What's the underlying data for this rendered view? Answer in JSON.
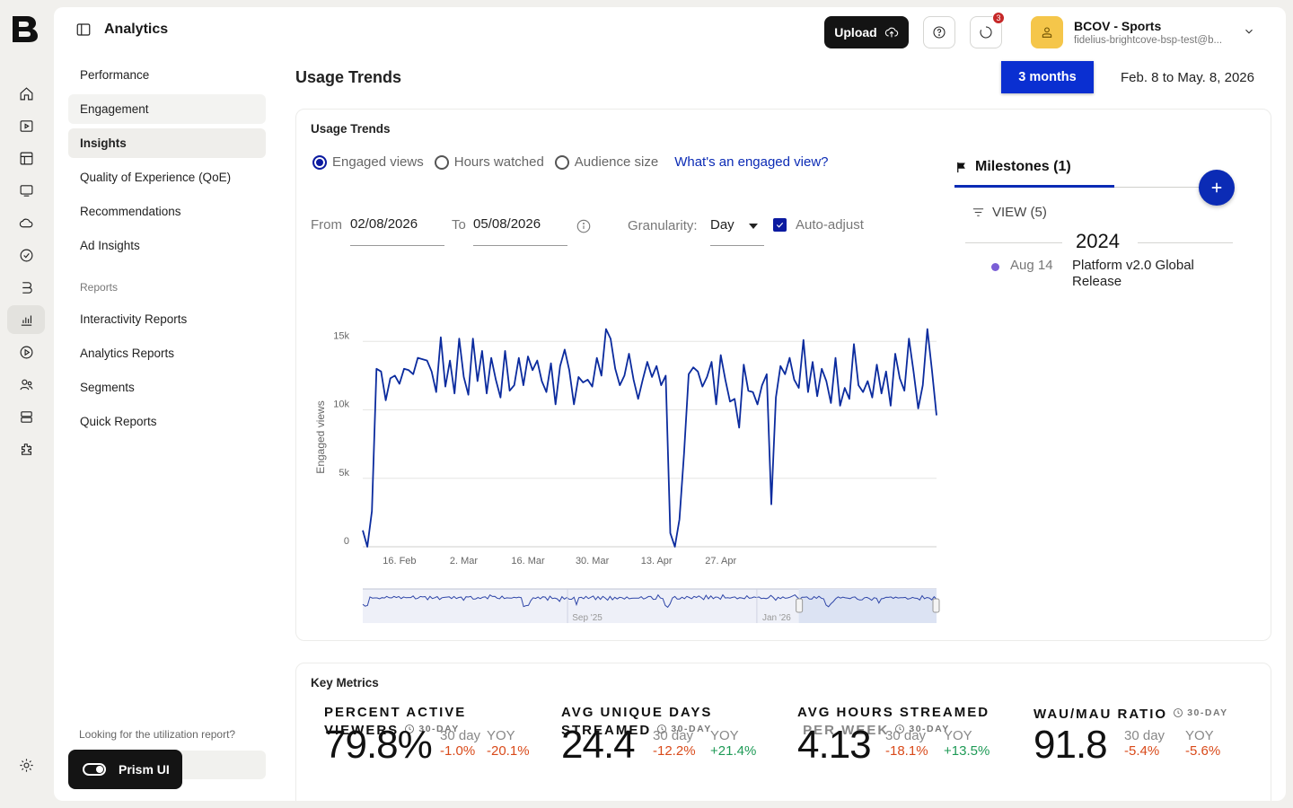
{
  "app": {
    "section_title": "Analytics"
  },
  "sidebar_nav": {
    "items": [
      {
        "label": "Performance"
      },
      {
        "label": "Engagement"
      },
      {
        "label": "Insights"
      },
      {
        "label": "Quality of Experience (QoE)"
      },
      {
        "label": "Recommendations"
      },
      {
        "label": "Ad Insights"
      }
    ],
    "reports_heading": "Reports",
    "reports": [
      {
        "label": "Interactivity Reports"
      },
      {
        "label": "Analytics Reports"
      },
      {
        "label": "Segments"
      },
      {
        "label": "Quick Reports"
      }
    ],
    "util_note": "Looking for the utilization report?",
    "prism_label": "Prism UI"
  },
  "header": {
    "upload_label": "Upload",
    "notification_count": "3",
    "account_name": "BCOV - Sports",
    "account_email": "fidelius-brightcove-bsp-test@b..."
  },
  "page": {
    "title": "Usage Trends",
    "range_button": "3 months",
    "range_text": "Feb. 8 to May. 8, 2026"
  },
  "usage_card": {
    "title": "Usage Trends",
    "metric_options": [
      {
        "label": "Engaged views",
        "selected": true
      },
      {
        "label": "Hours watched",
        "selected": false
      },
      {
        "label": "Audience size",
        "selected": false
      }
    ],
    "help_link": "What's an engaged view?",
    "from_label": "From",
    "from_value": "02/08/2026",
    "to_label": "To",
    "to_value": "05/08/2026",
    "granularity_label": "Granularity:",
    "granularity_value": "Day",
    "auto_adjust_label": "Auto-adjust",
    "auto_adjust_checked": true
  },
  "milestones": {
    "tab_label": "Milestones (1)",
    "view_label": "VIEW (5)",
    "year": "2024",
    "events": [
      {
        "date": "Aug 14",
        "text": "Platform v2.0 Global Release"
      }
    ]
  },
  "chart_data": {
    "type": "line",
    "ylabel": "Engaged views",
    "y_ticks": [
      {
        "v": 0,
        "label": "0"
      },
      {
        "v": 5000,
        "label": "5k"
      },
      {
        "v": 10000,
        "label": "10k"
      },
      {
        "v": 15000,
        "label": "15k"
      }
    ],
    "ylim": [
      0,
      16000
    ],
    "x_ticks": [
      {
        "label": "16. Feb",
        "day": 8
      },
      {
        "label": "2. Mar",
        "day": 22
      },
      {
        "label": "16. Mar",
        "day": 36
      },
      {
        "label": "30. Mar",
        "day": 50
      },
      {
        "label": "13. Apr",
        "day": 64
      },
      {
        "label": "27. Apr",
        "day": 78
      }
    ],
    "grid": true,
    "series": [
      {
        "color": "#0b2b9e",
        "values": [
          1200,
          0,
          2600,
          13000,
          12800,
          10700,
          12300,
          12500,
          11900,
          13000,
          12900,
          12600,
          13800,
          13700,
          13600,
          12800,
          11300,
          15300,
          11700,
          13600,
          11200,
          15200,
          12400,
          11100,
          15200,
          12100,
          14300,
          11200,
          13800,
          12200,
          10900,
          14300,
          11400,
          11800,
          13800,
          11800,
          13900,
          12900,
          13600,
          12100,
          11300,
          13400,
          10400,
          13200,
          14400,
          12900,
          10400,
          12400,
          12000,
          12200,
          11700,
          13800,
          12500,
          15900,
          15200,
          13000,
          11800,
          12500,
          14100,
          12200,
          10800,
          12200,
          13500,
          12400,
          13200,
          11800,
          12500,
          1000,
          0,
          2000,
          6800,
          12600,
          13100,
          12800,
          11700,
          12400,
          13500,
          10400,
          14000,
          12200,
          10600,
          10800,
          8700,
          13300,
          11400,
          11300,
          10400,
          11800,
          12600,
          3100,
          10900,
          13200,
          12600,
          13800,
          12200,
          11600,
          15100,
          11300,
          13500,
          11000,
          13000,
          12100,
          10500,
          13800,
          10300,
          11600,
          10800,
          14800,
          11800,
          11300,
          12100,
          10900,
          13300,
          11200,
          12800,
          10300,
          14100,
          12300,
          11400,
          15200,
          12800,
          10100,
          11800,
          15900,
          12900,
          9600
        ]
      }
    ],
    "navigator_ticks": [
      {
        "label": "Sep '25"
      },
      {
        "label": "Jan '26"
      }
    ]
  },
  "key_metrics": {
    "title": "Key Metrics",
    "cmp_label_30": "30 day",
    "cmp_label_yoy": "YOY",
    "period_tag": "30-DAY",
    "items": [
      {
        "title_line1": "PERCENT ACTIVE",
        "title_line2": "VIEWERS",
        "value": "79.8%",
        "d30": "-1.0%",
        "yoy": "-20.1%"
      },
      {
        "title_line1": "AVG UNIQUE DAYS",
        "title_line2": "STREAMED",
        "value": "24.4",
        "d30": "-12.2%",
        "yoy": "+21.4%"
      },
      {
        "title_line1": "AVG HOURS STREAMED",
        "title_line2": "PER WEEK",
        "value": "4.13",
        "d30": "-18.1%",
        "yoy": "+13.5%"
      },
      {
        "title_line1": "WAU/MAU RATIO",
        "title_line2": "",
        "value": "91.8",
        "d30": "-5.4%",
        "yoy": "-5.6%"
      }
    ]
  },
  "colors": {
    "accent": "#0b2bb5",
    "negative": "#d94a1a",
    "positive": "#1e9a56",
    "line": "#0b2b9e"
  }
}
